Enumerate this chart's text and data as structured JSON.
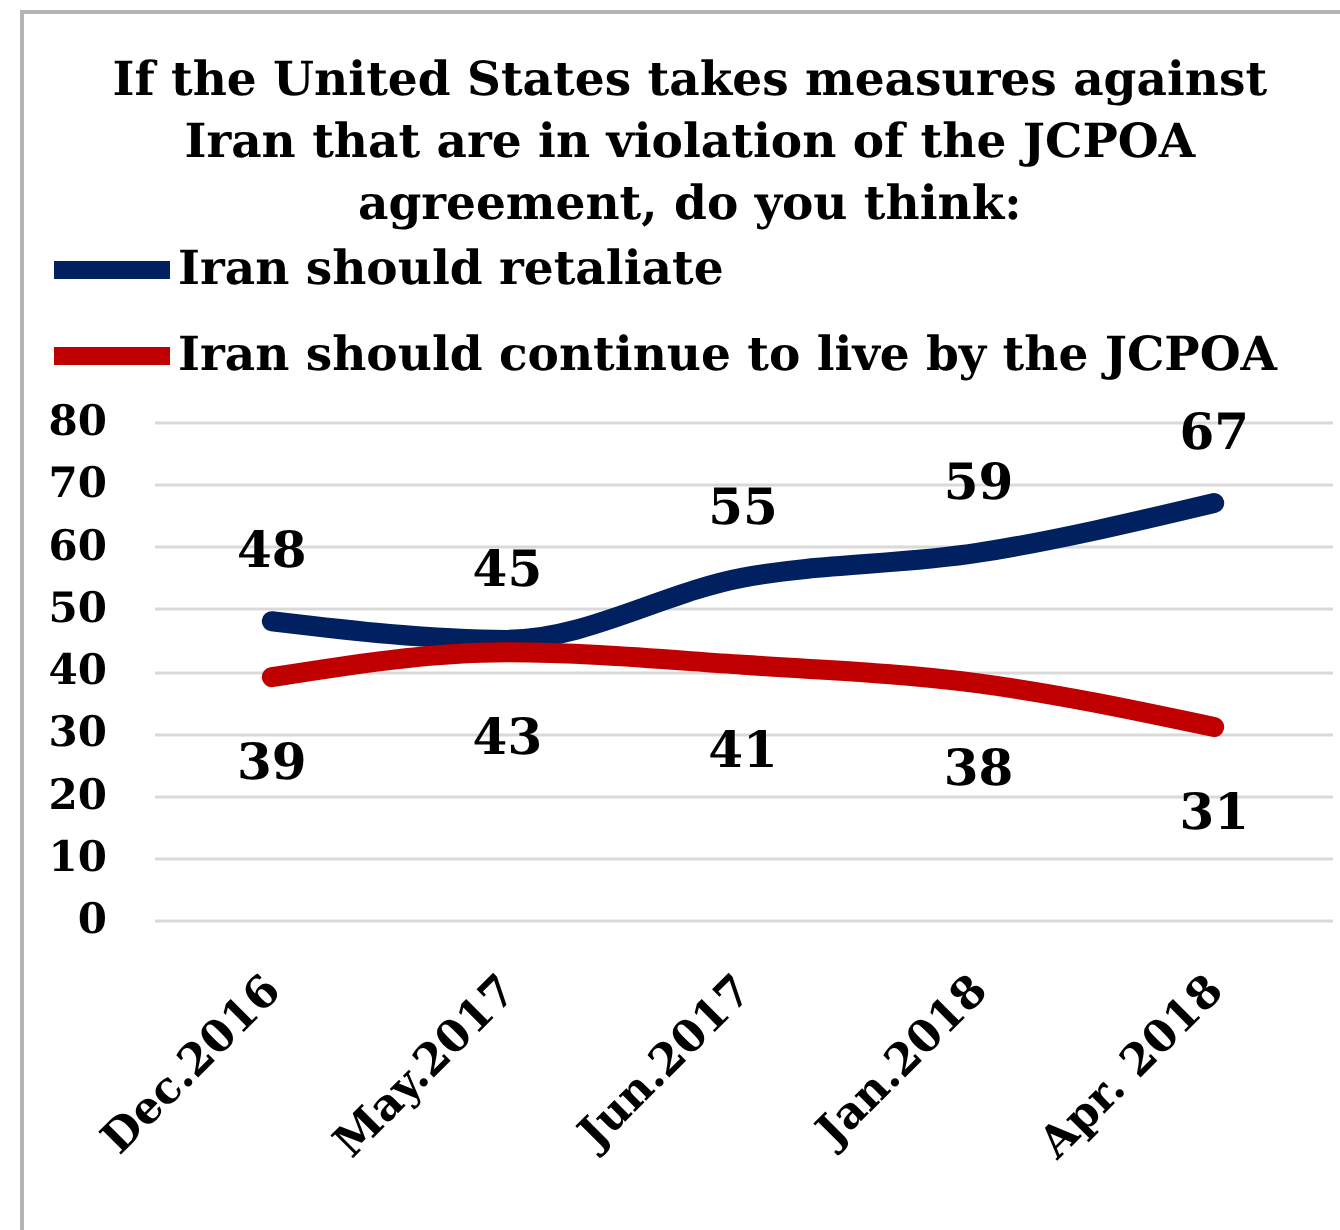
{
  "chart_data": {
    "type": "line",
    "title": "If the United States takes measures against Iran that are in violation of the JCPOA agreement, do you think:",
    "categories": [
      "Dec.2016",
      "May.2017",
      "Jun.2017",
      "Jan.2018",
      "Apr. 2018"
    ],
    "series": [
      {
        "name": "Iran should retaliate",
        "color": "#002060",
        "values": [
          48,
          45,
          55,
          59,
          67
        ]
      },
      {
        "name": "Iran should continue to live by the JCPOA",
        "color": "#c00000",
        "values": [
          39,
          43,
          41,
          38,
          31
        ]
      }
    ],
    "ylim": [
      0,
      80
    ],
    "yticks": [
      0,
      10,
      20,
      30,
      40,
      50,
      60,
      70,
      80
    ],
    "grid": "y",
    "legend": "top left",
    "data_labels": true
  }
}
